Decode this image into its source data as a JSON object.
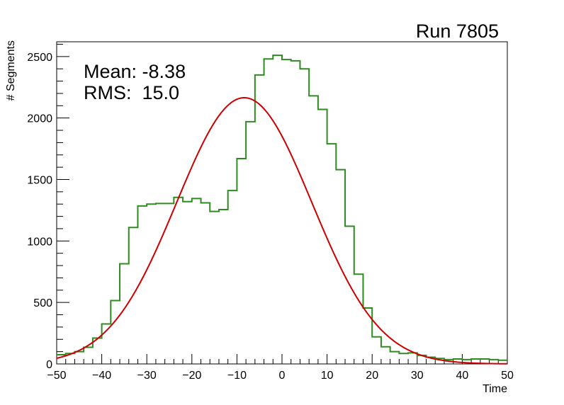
{
  "chart_data": {
    "type": "histogram",
    "title": "Run 7805",
    "xlabel": "Time",
    "ylabel": "# Segments",
    "xlim": [
      -50,
      50
    ],
    "ylim": [
      0,
      2620
    ],
    "x_ticks": [
      -50,
      -40,
      -30,
      -20,
      -10,
      0,
      10,
      20,
      30,
      40,
      50
    ],
    "y_ticks": [
      0,
      500,
      1000,
      1500,
      2000,
      2500
    ],
    "grid": false,
    "legend": "none",
    "stats": {
      "mean_label": "Mean: -8.38",
      "rms_label": "RMS:  15.0"
    },
    "histogram": {
      "color": "#2e8b20",
      "bin_edges_start": -50,
      "bin_width": 2,
      "counts": [
        75,
        85,
        100,
        135,
        210,
        325,
        515,
        815,
        1110,
        1285,
        1300,
        1305,
        1305,
        1355,
        1320,
        1345,
        1310,
        1240,
        1255,
        1410,
        1670,
        1970,
        2350,
        2480,
        2510,
        2475,
        2465,
        2400,
        2180,
        2070,
        1790,
        1580,
        1120,
        730,
        455,
        220,
        140,
        100,
        85,
        90,
        70,
        55,
        45,
        35,
        40,
        35,
        40,
        40,
        35,
        30
      ]
    },
    "fit": {
      "color": "#cc0000",
      "type": "gaussian",
      "mean": -8.38,
      "sigma": 15.0,
      "amplitude": 2165
    }
  }
}
